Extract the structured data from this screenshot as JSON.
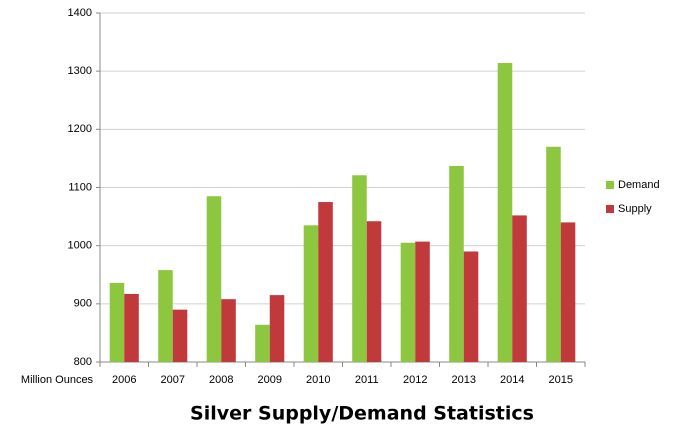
{
  "chart_data": {
    "type": "bar",
    "title": "Silver Supply/Demand Statistics",
    "x_label": "Million Ounces",
    "categories": [
      "2006",
      "2007",
      "2008",
      "2009",
      "2010",
      "2011",
      "2012",
      "2013",
      "2014",
      "2015"
    ],
    "series": [
      {
        "name": "Demand",
        "color": "#8dc63f",
        "values": [
          936,
          958,
          1085,
          864,
          1035,
          1121,
          1005,
          1137,
          1314,
          1170
        ]
      },
      {
        "name": "Supply",
        "color": "#c0393b",
        "values": [
          917,
          890,
          908,
          915,
          1075,
          1042,
          1007,
          990,
          1052,
          1040
        ]
      }
    ],
    "ylim": [
      800,
      1400
    ],
    "yticks": [
      800,
      900,
      1000,
      1100,
      1200,
      1300,
      1400
    ],
    "grid": true,
    "legend": "right"
  }
}
